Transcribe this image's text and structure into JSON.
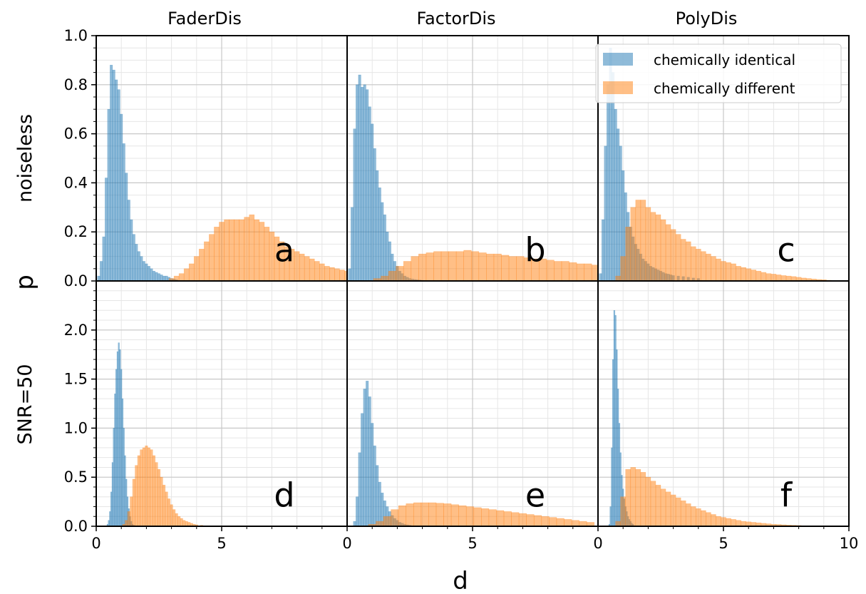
{
  "figure": {
    "xlabel": "d",
    "ylabel": "p",
    "row_labels": [
      "noiseless",
      "SNR=50"
    ],
    "column_titles": [
      "FaderDis",
      "FactorDis",
      "PolyDis"
    ],
    "legend": {
      "placement": "top-right of panel c",
      "entries": [
        {
          "label": "chemically identical",
          "color": "#1f77b4"
        },
        {
          "label": "chemically different",
          "color": "#ff7f0e"
        }
      ]
    },
    "colors": {
      "identical": "#1f77b4",
      "different": "#ff7f0e"
    }
  },
  "chart_data": [
    {
      "type": "bar",
      "panel": "a",
      "title": "FaderDis",
      "row_label": "noiseless",
      "xlim": [
        0,
        10
      ],
      "ylim": [
        0,
        1.0
      ],
      "yticks": [
        "0.0",
        "0.2",
        "0.4",
        "0.6",
        "0.8",
        "1.0"
      ],
      "xticks": [
        "0",
        "5"
      ],
      "bin_width": 0.1,
      "series": [
        {
          "name": "chemically identical",
          "x": [
            0.1,
            0.2,
            0.3,
            0.4,
            0.5,
            0.6,
            0.7,
            0.8,
            0.9,
            1.0,
            1.1,
            1.2,
            1.3,
            1.4,
            1.5,
            1.6,
            1.7,
            1.8,
            1.9,
            2.0,
            2.1,
            2.2,
            2.3,
            2.4,
            2.5,
            2.6,
            2.7,
            2.8,
            2.9,
            3.0,
            3.1,
            3.2
          ],
          "values": [
            0.02,
            0.08,
            0.18,
            0.42,
            0.7,
            0.88,
            0.86,
            0.82,
            0.78,
            0.68,
            0.56,
            0.44,
            0.33,
            0.25,
            0.19,
            0.15,
            0.12,
            0.1,
            0.08,
            0.07,
            0.06,
            0.05,
            0.04,
            0.035,
            0.03,
            0.025,
            0.02,
            0.02,
            0.015,
            0.01,
            0.008,
            0.005
          ]
        },
        {
          "name": "chemically different",
          "x": [
            3.0,
            3.2,
            3.4,
            3.6,
            3.8,
            4.0,
            4.2,
            4.4,
            4.6,
            4.8,
            5.0,
            5.2,
            5.4,
            5.6,
            5.8,
            6.0,
            6.2,
            6.4,
            6.6,
            6.8,
            7.0,
            7.2,
            7.4,
            7.6,
            7.8,
            8.0,
            8.2,
            8.4,
            8.6,
            8.8,
            9.0,
            9.2,
            9.4,
            9.6,
            9.8,
            10.0
          ],
          "values": [
            0.01,
            0.02,
            0.03,
            0.05,
            0.07,
            0.1,
            0.13,
            0.16,
            0.19,
            0.22,
            0.24,
            0.25,
            0.25,
            0.25,
            0.25,
            0.26,
            0.27,
            0.25,
            0.24,
            0.22,
            0.2,
            0.18,
            0.16,
            0.14,
            0.13,
            0.12,
            0.11,
            0.1,
            0.09,
            0.08,
            0.07,
            0.06,
            0.055,
            0.05,
            0.045,
            0.04
          ]
        }
      ]
    },
    {
      "type": "bar",
      "panel": "b",
      "title": "FactorDis",
      "row_label": "noiseless",
      "xlim": [
        0,
        10
      ],
      "ylim": [
        0,
        1.0
      ],
      "xticks": [
        "0",
        "5"
      ],
      "bin_width": 0.1,
      "series": [
        {
          "name": "chemically identical",
          "x": [
            0.1,
            0.2,
            0.3,
            0.4,
            0.5,
            0.6,
            0.7,
            0.8,
            0.9,
            1.0,
            1.1,
            1.2,
            1.3,
            1.4,
            1.5,
            1.6,
            1.7,
            1.8,
            1.9,
            2.0,
            2.1,
            2.2,
            2.3,
            2.4,
            2.5,
            2.6,
            2.7,
            2.8,
            2.9,
            3.0
          ],
          "values": [
            0.05,
            0.3,
            0.62,
            0.8,
            0.84,
            0.79,
            0.8,
            0.78,
            0.71,
            0.64,
            0.54,
            0.45,
            0.38,
            0.32,
            0.27,
            0.2,
            0.16,
            0.11,
            0.08,
            0.06,
            0.04,
            0.03,
            0.02,
            0.015,
            0.01,
            0.008,
            0.006,
            0.005,
            0.004,
            0.003
          ]
        },
        {
          "name": "chemically different",
          "x": [
            1.2,
            1.5,
            1.8,
            2.1,
            2.4,
            2.7,
            3.0,
            3.3,
            3.6,
            3.9,
            4.2,
            4.5,
            4.8,
            5.1,
            5.4,
            5.7,
            6.0,
            6.3,
            6.6,
            6.9,
            7.2,
            7.5,
            7.8,
            8.1,
            8.4,
            8.7,
            9.0,
            9.3,
            9.6,
            9.9
          ],
          "values": [
            0.01,
            0.02,
            0.04,
            0.06,
            0.08,
            0.1,
            0.11,
            0.115,
            0.12,
            0.12,
            0.12,
            0.12,
            0.125,
            0.12,
            0.115,
            0.11,
            0.11,
            0.105,
            0.1,
            0.1,
            0.095,
            0.09,
            0.09,
            0.085,
            0.08,
            0.08,
            0.075,
            0.07,
            0.07,
            0.065
          ]
        }
      ]
    },
    {
      "type": "bar",
      "panel": "c",
      "title": "PolyDis",
      "row_label": "noiseless",
      "xlim": [
        0,
        10
      ],
      "ylim": [
        0,
        1.0
      ],
      "xticks": [
        "0",
        "5",
        "10"
      ],
      "bin_width": 0.1,
      "series": [
        {
          "name": "chemically identical",
          "x": [
            0.1,
            0.2,
            0.3,
            0.4,
            0.5,
            0.6,
            0.7,
            0.8,
            0.9,
            1.0,
            1.1,
            1.2,
            1.3,
            1.4,
            1.5,
            1.6,
            1.7,
            1.8,
            1.9,
            2.0,
            2.1,
            2.2,
            2.3,
            2.4,
            2.5,
            2.6,
            2.7,
            2.8,
            2.9,
            3.0,
            3.2,
            3.4,
            3.6,
            3.8,
            4.0
          ],
          "values": [
            0.03,
            0.25,
            0.55,
            0.8,
            0.95,
            0.85,
            0.7,
            0.62,
            0.55,
            0.45,
            0.36,
            0.28,
            0.22,
            0.18,
            0.15,
            0.13,
            0.11,
            0.09,
            0.08,
            0.07,
            0.06,
            0.055,
            0.05,
            0.045,
            0.04,
            0.035,
            0.03,
            0.028,
            0.025,
            0.022,
            0.02,
            0.018,
            0.015,
            0.012,
            0.01
          ]
        },
        {
          "name": "chemically different",
          "x": [
            0.8,
            1.0,
            1.2,
            1.4,
            1.6,
            1.8,
            2.0,
            2.2,
            2.4,
            2.6,
            2.8,
            3.0,
            3.2,
            3.4,
            3.6,
            3.8,
            4.0,
            4.2,
            4.4,
            4.6,
            4.8,
            5.0,
            5.2,
            5.4,
            5.6,
            5.8,
            6.0,
            6.2,
            6.4,
            6.6,
            6.8,
            7.0,
            7.2,
            7.4,
            7.6,
            7.8,
            8.0,
            8.2,
            8.4,
            8.6,
            8.8,
            9.0,
            9.2
          ],
          "values": [
            0.02,
            0.1,
            0.22,
            0.3,
            0.33,
            0.33,
            0.3,
            0.28,
            0.27,
            0.25,
            0.23,
            0.21,
            0.19,
            0.17,
            0.16,
            0.14,
            0.13,
            0.12,
            0.11,
            0.1,
            0.09,
            0.08,
            0.075,
            0.07,
            0.06,
            0.055,
            0.05,
            0.045,
            0.04,
            0.035,
            0.03,
            0.028,
            0.025,
            0.022,
            0.02,
            0.018,
            0.015,
            0.012,
            0.01,
            0.008,
            0.006,
            0.005,
            0.003
          ]
        }
      ]
    },
    {
      "type": "bar",
      "panel": "d",
      "title": "",
      "row_label": "SNR=50",
      "xlim": [
        0,
        10
      ],
      "ylim": [
        0,
        2.5
      ],
      "yticks": [
        "0.0",
        "0.5",
        "1.0",
        "1.5",
        "2.0"
      ],
      "xticks": [
        "0",
        "5"
      ],
      "bin_width": 0.05,
      "series": [
        {
          "name": "chemically identical",
          "x": [
            0.45,
            0.5,
            0.55,
            0.6,
            0.65,
            0.7,
            0.75,
            0.8,
            0.85,
            0.9,
            0.95,
            1.0,
            1.05,
            1.1,
            1.15,
            1.2,
            1.25,
            1.3,
            1.35,
            1.4,
            1.45,
            1.5
          ],
          "values": [
            0.02,
            0.06,
            0.15,
            0.35,
            0.65,
            1.0,
            1.35,
            1.6,
            1.78,
            1.87,
            1.8,
            1.6,
            1.3,
            1.0,
            0.72,
            0.48,
            0.3,
            0.18,
            0.1,
            0.05,
            0.02,
            0.01
          ]
        },
        {
          "name": "chemically different",
          "x": [
            1.1,
            1.2,
            1.3,
            1.4,
            1.5,
            1.6,
            1.7,
            1.8,
            1.9,
            2.0,
            2.1,
            2.2,
            2.3,
            2.4,
            2.5,
            2.6,
            2.7,
            2.8,
            2.9,
            3.0,
            3.1,
            3.2,
            3.3,
            3.4,
            3.5,
            3.6,
            3.7,
            3.8,
            3.9,
            4.0,
            4.2,
            4.4
          ],
          "values": [
            0.02,
            0.06,
            0.15,
            0.3,
            0.48,
            0.62,
            0.72,
            0.78,
            0.8,
            0.82,
            0.8,
            0.78,
            0.72,
            0.65,
            0.58,
            0.5,
            0.42,
            0.35,
            0.28,
            0.22,
            0.17,
            0.13,
            0.1,
            0.08,
            0.06,
            0.05,
            0.04,
            0.03,
            0.02,
            0.015,
            0.01,
            0.005
          ]
        }
      ]
    },
    {
      "type": "bar",
      "panel": "e",
      "title": "",
      "row_label": "SNR=50",
      "xlim": [
        0,
        10
      ],
      "ylim": [
        0,
        2.5
      ],
      "xticks": [
        "0",
        "5"
      ],
      "bin_width": 0.1,
      "series": [
        {
          "name": "chemically identical",
          "x": [
            0.3,
            0.4,
            0.5,
            0.6,
            0.7,
            0.8,
            0.9,
            1.0,
            1.1,
            1.2,
            1.3,
            1.4,
            1.5,
            1.6,
            1.7,
            1.8,
            1.9,
            2.0,
            2.1,
            2.2,
            2.3,
            2.4,
            2.5
          ],
          "values": [
            0.05,
            0.3,
            0.75,
            1.15,
            1.4,
            1.48,
            1.32,
            1.05,
            0.82,
            0.62,
            0.45,
            0.34,
            0.26,
            0.2,
            0.15,
            0.11,
            0.08,
            0.06,
            0.04,
            0.03,
            0.02,
            0.015,
            0.01
          ]
        },
        {
          "name": "chemically different",
          "x": [
            1.0,
            1.3,
            1.6,
            1.9,
            2.2,
            2.5,
            2.8,
            3.1,
            3.4,
            3.7,
            4.0,
            4.3,
            4.6,
            4.9,
            5.2,
            5.5,
            5.8,
            6.1,
            6.4,
            6.7,
            7.0,
            7.3,
            7.6,
            7.9,
            8.2,
            8.5,
            8.8,
            9.1,
            9.4,
            9.7
          ],
          "values": [
            0.02,
            0.05,
            0.1,
            0.17,
            0.21,
            0.23,
            0.24,
            0.24,
            0.24,
            0.235,
            0.23,
            0.22,
            0.21,
            0.2,
            0.19,
            0.18,
            0.17,
            0.16,
            0.15,
            0.14,
            0.13,
            0.12,
            0.11,
            0.1,
            0.09,
            0.08,
            0.07,
            0.06,
            0.05,
            0.04
          ]
        }
      ]
    },
    {
      "type": "bar",
      "panel": "f",
      "title": "",
      "row_label": "SNR=50",
      "xlim": [
        0,
        10
      ],
      "ylim": [
        0,
        2.5
      ],
      "xticks": [
        "0",
        "5",
        "10"
      ],
      "bin_width": 0.05,
      "series": [
        {
          "name": "chemically identical",
          "x": [
            0.45,
            0.5,
            0.55,
            0.6,
            0.65,
            0.7,
            0.75,
            0.8,
            0.85,
            0.9,
            0.95,
            1.0,
            1.05,
            1.1,
            1.15,
            1.2,
            1.25,
            1.3,
            1.35,
            1.4
          ],
          "values": [
            0.02,
            0.2,
            0.8,
            1.7,
            2.2,
            2.15,
            1.8,
            1.4,
            1.05,
            0.75,
            0.52,
            0.38,
            0.28,
            0.2,
            0.15,
            0.1,
            0.07,
            0.05,
            0.03,
            0.02
          ]
        },
        {
          "name": "chemically different",
          "x": [
            0.8,
            1.0,
            1.2,
            1.4,
            1.6,
            1.8,
            2.0,
            2.2,
            2.4,
            2.6,
            2.8,
            3.0,
            3.2,
            3.4,
            3.6,
            3.8,
            4.0,
            4.2,
            4.4,
            4.6,
            4.8,
            5.0,
            5.2,
            5.4,
            5.6,
            5.8,
            6.0,
            6.2,
            6.4,
            6.6,
            6.8,
            7.0,
            7.2,
            7.4,
            7.6,
            7.8,
            8.0,
            8.2,
            8.4
          ],
          "values": [
            0.05,
            0.3,
            0.58,
            0.6,
            0.58,
            0.55,
            0.5,
            0.46,
            0.42,
            0.38,
            0.35,
            0.32,
            0.29,
            0.26,
            0.23,
            0.2,
            0.18,
            0.16,
            0.14,
            0.12,
            0.1,
            0.09,
            0.08,
            0.07,
            0.06,
            0.05,
            0.045,
            0.04,
            0.035,
            0.03,
            0.025,
            0.02,
            0.018,
            0.015,
            0.012,
            0.01,
            0.008,
            0.005,
            0.003
          ]
        }
      ]
    }
  ]
}
